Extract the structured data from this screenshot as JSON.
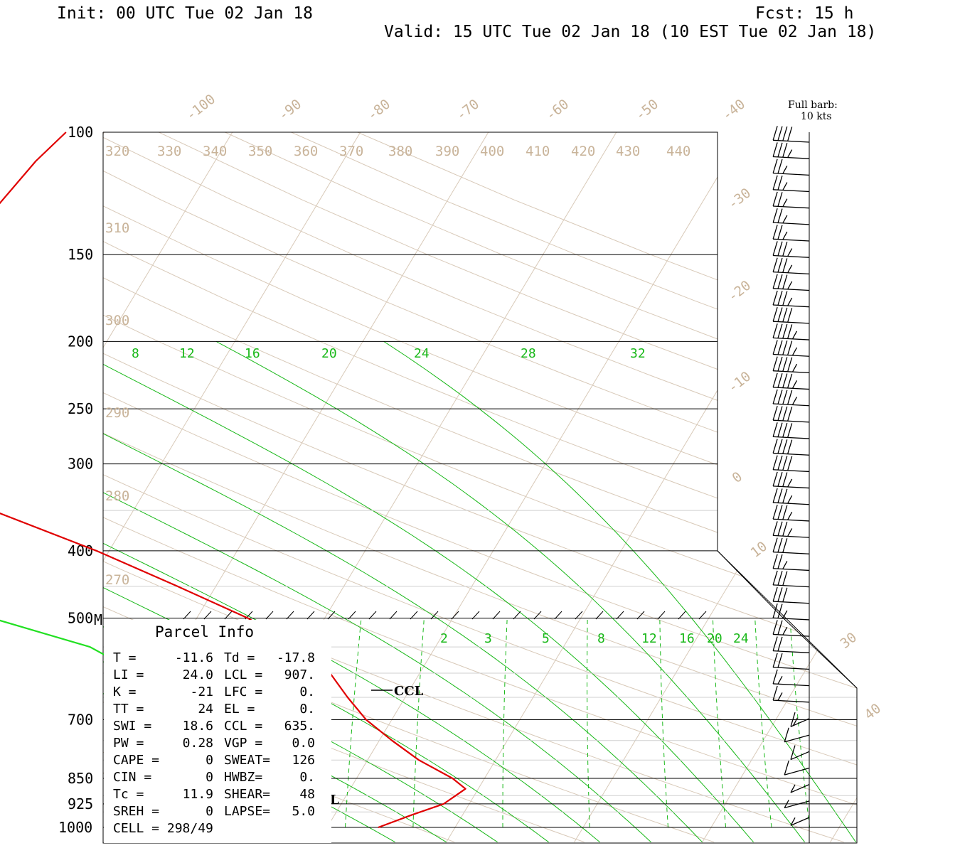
{
  "header": {
    "init": "Init: 00 UTC Tue 02 Jan 18",
    "fcst": "Fcst:   15 h",
    "valid": "Valid: 15 UTC Tue 02 Jan 18 (10 EST Tue 02 Jan 18)"
  },
  "legend": {
    "full_barb": "Full barb:",
    "full_barb_value": "10 kts"
  },
  "marker_m": "M",
  "ccl_label": "CCL",
  "lcl_label": "LCL",
  "chart_data": {
    "type": "skew-t",
    "pressure_levels": [
      100,
      150,
      200,
      250,
      300,
      400,
      500,
      700,
      850,
      925,
      1000
    ],
    "pressure_labels": [
      "100",
      "150",
      "200",
      "250",
      "300",
      "400",
      "500",
      "700",
      "850",
      "925",
      "1000"
    ],
    "isotherm_labels": [
      "-100",
      "-90",
      "-80",
      "-70",
      "-60",
      "-50",
      "-40",
      "-30",
      "-20",
      "-10",
      "0",
      "10",
      "30",
      "40"
    ],
    "potential_temperature_labels": [
      "320",
      "330",
      "340",
      "350",
      "360",
      "370",
      "380",
      "390",
      "400",
      "410",
      "420",
      "430",
      "440",
      "310",
      "300",
      "290",
      "280",
      "270"
    ],
    "equivalent_potential_temperature_labels": [
      "8",
      "12",
      "16",
      "20",
      "24",
      "28",
      "32"
    ],
    "mixing_ratio_labels": [
      "2",
      "3",
      "5",
      "8",
      "12",
      "16",
      "20",
      "24"
    ],
    "temperature_profile": {
      "color": "#e00000",
      "pressure": [
        100,
        110,
        130,
        150,
        175,
        200,
        220,
        250,
        290,
        330,
        350,
        400,
        450,
        500,
        550,
        600,
        650,
        700,
        750,
        800,
        850,
        880,
        925,
        960,
        1000
      ],
      "temperature": [
        -63,
        -64,
        -65,
        -66,
        -65.5,
        -64,
        -61,
        -57,
        -54,
        -55,
        -51,
        -41,
        -33,
        -26,
        -21,
        -17,
        -14.5,
        -12,
        -9,
        -6,
        -2.5,
        -1,
        -2,
        -4,
        -6
      ]
    },
    "dewpoint_profile": {
      "color": "#22e022",
      "pressure": [
        100,
        110,
        130,
        150,
        175,
        200,
        215,
        235,
        250,
        275,
        310,
        350,
        400,
        450,
        500,
        550,
        600,
        650,
        700,
        750,
        800,
        850,
        900,
        950,
        1000
      ],
      "dewpoint": [
        -86,
        -90,
        -95,
        -98,
        -103,
        -107,
        -106,
        -102,
        -100,
        -99,
        -94,
        -82,
        -70,
        -59,
        -46,
        -37,
        -32,
        -29,
        -26,
        -24,
        -22,
        -21,
        -18,
        -15,
        -12
      ]
    },
    "wind_barbs_kts": [
      40,
      35,
      25,
      25,
      25,
      25,
      25,
      35,
      35,
      35,
      35,
      40,
      45,
      45,
      45,
      45,
      45,
      40,
      40,
      40,
      40,
      35,
      35,
      35,
      35,
      30,
      25,
      30,
      30,
      25,
      25,
      20,
      20,
      15,
      15,
      15,
      10,
      10,
      10,
      5,
      5,
      5
    ]
  },
  "parcel_info": {
    "title": "Parcel Info",
    "rows": [
      [
        "T  =",
        "-11.6",
        "Td =",
        "-17.8"
      ],
      [
        "LI =",
        "24.0",
        "LCL =",
        "907."
      ],
      [
        "K  =",
        "-21",
        "LFC =",
        "0."
      ],
      [
        "TT =",
        "24",
        "EL  =",
        "0."
      ],
      [
        "SWI =",
        "18.6",
        "CCL =",
        "635."
      ],
      [
        "PW =",
        "0.28",
        "VGP =",
        "0.0"
      ],
      [
        "CAPE =",
        "0",
        "SWEAT=",
        "126"
      ],
      [
        "CIN =",
        "0",
        "HWBZ=",
        "0."
      ],
      [
        "Tc =",
        "11.9",
        "SHEAR=",
        "48"
      ],
      [
        "SREH =",
        "0",
        "LAPSE=",
        "5.0"
      ],
      [
        "CELL = 298/49",
        "",
        "",
        ""
      ]
    ]
  }
}
